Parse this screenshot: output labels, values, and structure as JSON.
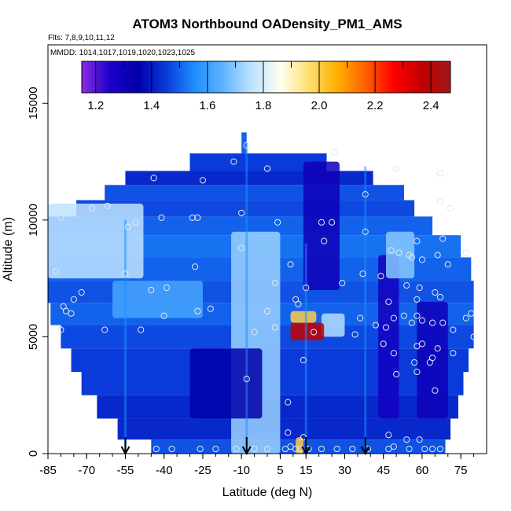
{
  "chart_data": {
    "type": "heatmap",
    "title": "ATOM3 Northbound OADensity_PM1_AMS",
    "notes": {
      "flights": "Flts: 7,8,9,10,11,12",
      "dates": "MMDD: 1014,1017,1019,1020,1023,1025"
    },
    "xlabel": "Latitude (deg N)",
    "ylabel": "Altitude (m)",
    "xlim": [
      -85,
      85
    ],
    "ylim": [
      0,
      17500
    ],
    "x_ticks": [
      -85,
      -70,
      -55,
      -40,
      -25,
      -10,
      5,
      15,
      30,
      45,
      60,
      75
    ],
    "x_tick_labels": [
      "-85",
      "-70",
      "-55",
      "-40",
      "-25",
      "-10",
      "5",
      "15",
      "30",
      "45",
      "60",
      "75"
    ],
    "y_ticks": [
      0,
      5000,
      10000,
      15000
    ],
    "y_tick_labels": [
      "0",
      "5000",
      "10000",
      "15000"
    ],
    "colorbar": {
      "range": [
        1.15,
        2.47
      ],
      "ticks": [
        1.2,
        1.4,
        1.6,
        1.8,
        2.0,
        2.2,
        2.4
      ],
      "tick_labels": [
        "1.2",
        "1.4",
        "1.6",
        "1.8",
        "2.0",
        "2.2",
        "2.4"
      ],
      "colors": [
        "#8a2be2",
        "#1a00c8",
        "#0000a8",
        "#0a3ddb",
        "#1e8fff",
        "#5fb4ff",
        "#bfe3ff",
        "#fffff0",
        "#ffe070",
        "#ffb000",
        "#ff6000",
        "#ff0000",
        "#c00000",
        "#a01818"
      ]
    },
    "bands": [
      {
        "alt": 13300,
        "xmin": -10,
        "xmax": -8,
        "value": 1.5
      },
      {
        "alt": 12400,
        "xmin": -30,
        "xmax": 23,
        "value": 1.45
      },
      {
        "alt": 11800,
        "xmin": -55,
        "xmax": 41,
        "value": 1.42
      },
      {
        "alt": 11200,
        "xmin": -63,
        "xmax": 53,
        "value": 1.48
      },
      {
        "alt": 10500,
        "xmin": -74,
        "xmax": 57,
        "value": 1.47
      },
      {
        "alt": 9800,
        "xmin": -85,
        "xmax": 64,
        "value": 1.5
      },
      {
        "alt": 8900,
        "xmin": -85,
        "xmax": 75,
        "value": 1.52
      },
      {
        "alt": 7900,
        "xmin": -85,
        "xmax": 79,
        "value": 1.5
      },
      {
        "alt": 6900,
        "xmin": -85,
        "xmax": 80,
        "value": 1.48
      },
      {
        "alt": 6000,
        "xmin": -84,
        "xmax": 80,
        "value": 1.5
      },
      {
        "alt": 5000,
        "xmin": -80,
        "xmax": 80,
        "value": 1.47
      },
      {
        "alt": 4000,
        "xmin": -76,
        "xmax": 78,
        "value": 1.45
      },
      {
        "alt": 3000,
        "xmin": -72,
        "xmax": 76,
        "value": 1.45
      },
      {
        "alt": 2000,
        "xmin": -66,
        "xmax": 74,
        "value": 1.42
      },
      {
        "alt": 1000,
        "xmin": -58,
        "xmax": 71,
        "value": 1.42
      },
      {
        "alt": 200,
        "xmin": -45,
        "xmax": 69,
        "value": 1.48
      }
    ],
    "features": [
      {
        "x": [
          -85,
          -48
        ],
        "alt": [
          7500,
          10700
        ],
        "value": 1.76
      },
      {
        "x": [
          -60,
          -25
        ],
        "alt": [
          5800,
          7400
        ],
        "value": 1.62
      },
      {
        "x": [
          -14,
          5
        ],
        "alt": [
          0,
          9500
        ],
        "value": 1.72
      },
      {
        "x": [
          14,
          28
        ],
        "alt": [
          7000,
          12500
        ],
        "value": 1.3
      },
      {
        "x": [
          43,
          51
        ],
        "alt": [
          1500,
          8500
        ],
        "value": 1.28
      },
      {
        "x": [
          58,
          70
        ],
        "alt": [
          1500,
          6500
        ],
        "value": 1.3
      },
      {
        "x": [
          -30,
          -2
        ],
        "alt": [
          1500,
          4500
        ],
        "value": 1.35
      },
      {
        "x": [
          46,
          57
        ],
        "alt": [
          7500,
          9500
        ],
        "value": 1.7
      },
      {
        "x": [
          21,
          30
        ],
        "alt": [
          5000,
          6000
        ],
        "value": 1.75
      },
      {
        "x": [
          9,
          19
        ],
        "alt": [
          5600,
          6100
        ],
        "value": 2.0
      },
      {
        "x": [
          9,
          22
        ],
        "alt": [
          4850,
          5600
        ],
        "value": 2.36
      },
      {
        "x": [
          11,
          14
        ],
        "alt": [
          0,
          700
        ],
        "value": 2.0
      }
    ],
    "profiles": [
      {
        "x": -55,
        "alt": [
          10,
          10000
        ]
      },
      {
        "x": -8,
        "alt": [
          10,
          13300
        ]
      },
      {
        "x": 15,
        "alt": [
          10,
          9000
        ]
      },
      {
        "x": 38,
        "alt": [
          10,
          12300
        ]
      }
    ],
    "points": [
      {
        "x": -44,
        "y": 11800
      },
      {
        "x": -25,
        "y": 11700
      },
      {
        "x": -13,
        "y": 12500
      },
      {
        "x": -8,
        "y": 13200
      },
      {
        "x": 0,
        "y": 12200
      },
      {
        "x": 26,
        "y": 12900
      },
      {
        "x": 50,
        "y": 12200
      },
      {
        "x": 67,
        "y": 12000
      },
      {
        "x": -68,
        "y": 10500
      },
      {
        "x": -62,
        "y": 10600
      },
      {
        "x": -41,
        "y": 10100
      },
      {
        "x": -29,
        "y": 10100
      },
      {
        "x": -27,
        "y": 10100
      },
      {
        "x": -10,
        "y": 10300
      },
      {
        "x": 4,
        "y": 9900
      },
      {
        "x": 21,
        "y": 9900
      },
      {
        "x": 25,
        "y": 9900
      },
      {
        "x": 38,
        "y": 11100
      },
      {
        "x": 67,
        "y": 10800
      },
      {
        "x": 71,
        "y": 10500
      },
      {
        "x": -80,
        "y": 10100
      },
      {
        "x": -54,
        "y": 9700
      },
      {
        "x": -51,
        "y": 9900
      },
      {
        "x": 22,
        "y": 9100
      },
      {
        "x": 38,
        "y": 9500
      },
      {
        "x": 58,
        "y": 9100
      },
      {
        "x": 68,
        "y": 9200
      },
      {
        "x": -10,
        "y": 8800
      },
      {
        "x": 48,
        "y": 8700
      },
      {
        "x": 51,
        "y": 8600
      },
      {
        "x": 55,
        "y": 8500
      },
      {
        "x": 56,
        "y": 8400
      },
      {
        "x": 60,
        "y": 8300
      },
      {
        "x": 66,
        "y": 8500
      },
      {
        "x": 77,
        "y": 8600
      },
      {
        "x": 70,
        "y": 8100
      },
      {
        "x": 9,
        "y": 8100
      },
      {
        "x": -28,
        "y": 8000
      },
      {
        "x": -82,
        "y": 7800
      },
      {
        "x": -55,
        "y": 7700
      },
      {
        "x": 37,
        "y": 7700
      },
      {
        "x": 44,
        "y": 7600
      },
      {
        "x": 3,
        "y": 7300
      },
      {
        "x": 29,
        "y": 7300
      },
      {
        "x": 54,
        "y": 7200
      },
      {
        "x": -72,
        "y": 6900
      },
      {
        "x": -45,
        "y": 7000
      },
      {
        "x": -39,
        "y": 7100
      },
      {
        "x": 15,
        "y": 7100
      },
      {
        "x": 59,
        "y": 7100
      },
      {
        "x": 65,
        "y": 6900
      },
      {
        "x": 67,
        "y": 6700
      },
      {
        "x": 58,
        "y": 6600
      },
      {
        "x": 47,
        "y": 6500
      },
      {
        "x": 12,
        "y": 6400
      },
      {
        "x": 11,
        "y": 6600
      },
      {
        "x": -75,
        "y": 6600
      },
      {
        "x": -79,
        "y": 6300
      },
      {
        "x": -78,
        "y": 6100
      },
      {
        "x": -76,
        "y": 6000
      },
      {
        "x": -40,
        "y": 5900
      },
      {
        "x": -27,
        "y": 6100
      },
      {
        "x": -22,
        "y": 6200
      },
      {
        "x": 0,
        "y": 6100
      },
      {
        "x": 36,
        "y": 5800
      },
      {
        "x": 49,
        "y": 5800
      },
      {
        "x": 53,
        "y": 5900
      },
      {
        "x": 58,
        "y": 5900
      },
      {
        "x": 60,
        "y": 5700
      },
      {
        "x": 68,
        "y": 5600
      },
      {
        "x": 77,
        "y": 5800
      },
      {
        "x": 79,
        "y": 6000
      },
      {
        "x": -80,
        "y": 5300
      },
      {
        "x": -63,
        "y": 5300
      },
      {
        "x": -49,
        "y": 5300
      },
      {
        "x": -5,
        "y": 5200
      },
      {
        "x": 3,
        "y": 5400
      },
      {
        "x": 18,
        "y": 5200
      },
      {
        "x": 34,
        "y": 5100
      },
      {
        "x": 42,
        "y": 5500
      },
      {
        "x": 46,
        "y": 5400
      },
      {
        "x": 56,
        "y": 5600
      },
      {
        "x": 64,
        "y": 5600
      },
      {
        "x": 72,
        "y": 5300
      },
      {
        "x": 80,
        "y": 5000
      },
      {
        "x": 45,
        "y": 4700
      },
      {
        "x": 58,
        "y": 4600
      },
      {
        "x": 60,
        "y": 4700
      },
      {
        "x": 66,
        "y": 4500
      },
      {
        "x": 72,
        "y": 4300
      },
      {
        "x": 49,
        "y": 4300
      },
      {
        "x": 14,
        "y": 4000
      },
      {
        "x": 57,
        "y": 3900
      },
      {
        "x": 64,
        "y": 4100
      },
      {
        "x": 63,
        "y": 3900
      },
      {
        "x": 58,
        "y": 3500
      },
      {
        "x": 50,
        "y": 3400
      },
      {
        "x": -8,
        "y": 3200
      },
      {
        "x": 65,
        "y": 2700
      },
      {
        "x": 8,
        "y": 2200
      },
      {
        "x": 8,
        "y": 900
      },
      {
        "x": 14,
        "y": 700
      },
      {
        "x": 47,
        "y": 800
      },
      {
        "x": 54,
        "y": 600
      },
      {
        "x": 59,
        "y": 600
      },
      {
        "x": -43,
        "y": 200
      },
      {
        "x": -37,
        "y": 200
      },
      {
        "x": -26,
        "y": 200
      },
      {
        "x": -20,
        "y": 200
      },
      {
        "x": -12,
        "y": 200
      },
      {
        "x": -5,
        "y": 200
      },
      {
        "x": 0,
        "y": 200
      },
      {
        "x": 7,
        "y": 200
      },
      {
        "x": 9,
        "y": 300
      },
      {
        "x": 11,
        "y": 200
      },
      {
        "x": 13,
        "y": 200
      },
      {
        "x": 16,
        "y": 200
      },
      {
        "x": 21,
        "y": 200
      },
      {
        "x": 27,
        "y": 200
      },
      {
        "x": 33,
        "y": 200
      },
      {
        "x": 39,
        "y": 200
      },
      {
        "x": 47,
        "y": 200
      },
      {
        "x": 49,
        "y": 300
      },
      {
        "x": 55,
        "y": 200
      },
      {
        "x": 61,
        "y": 200
      },
      {
        "x": 64,
        "y": 200
      },
      {
        "x": 67,
        "y": 200
      }
    ],
    "arrows_x": [
      -55,
      -8,
      15,
      38
    ]
  }
}
